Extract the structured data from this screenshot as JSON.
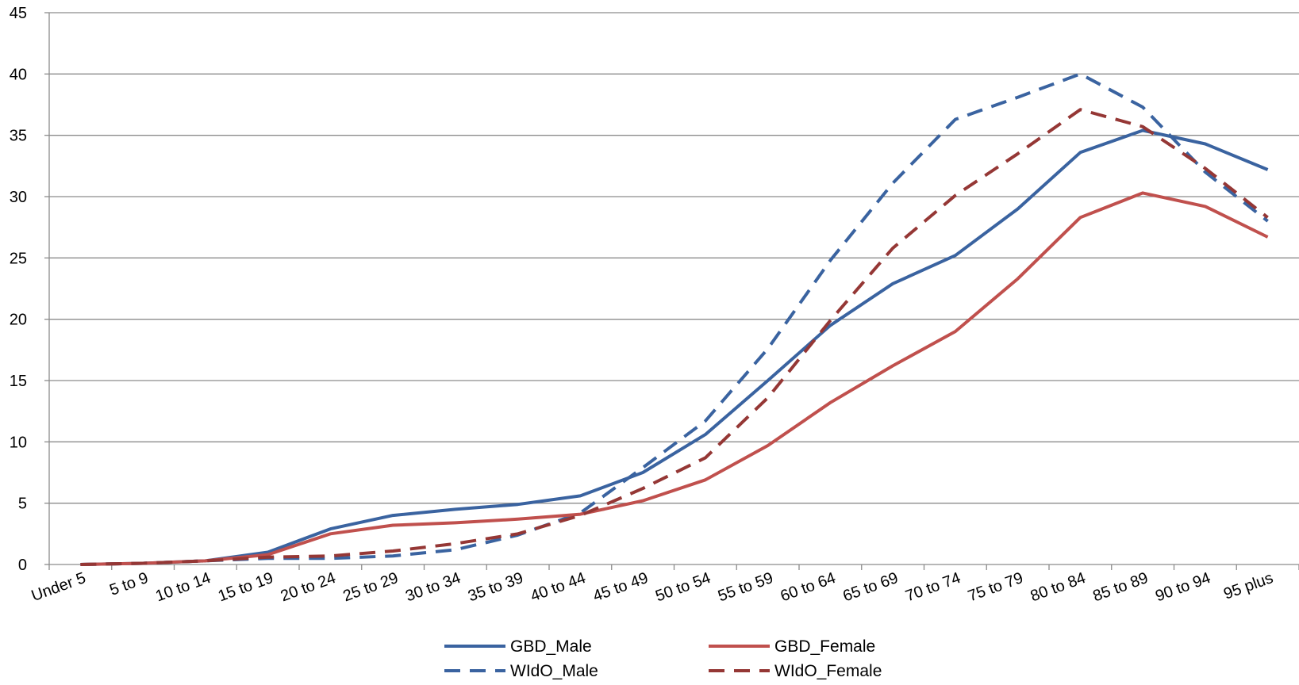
{
  "chart_data": {
    "type": "line",
    "title": "",
    "xlabel": "",
    "ylabel": "",
    "ylim": [
      0,
      45
    ],
    "yticks": [
      "0",
      "5",
      "10",
      "15",
      "20",
      "25",
      "30",
      "35",
      "40",
      "45"
    ],
    "categories": [
      "Under 5",
      "5 to 9",
      "10 to 14",
      "15 to 19",
      "20 to 24",
      "25 to 29",
      "30 to 34",
      "35 to 39",
      "40 to 44",
      "45 to 49",
      "50 to 54",
      "55 to 59",
      "60 to 64",
      "65 to 69",
      "70 to 74",
      "75 to 79",
      "80 to 84",
      "85 to 89",
      "90 to 94",
      "95 plus"
    ],
    "grid": true,
    "legend_position": "bottom",
    "series": [
      {
        "name": "GBD_Male",
        "color": "#3A63A0",
        "dash": "solid",
        "values": [
          0.0,
          0.1,
          0.3,
          1.0,
          2.9,
          4.0,
          4.5,
          4.9,
          5.6,
          7.5,
          10.6,
          15.0,
          19.5,
          22.9,
          25.2,
          29.0,
          33.6,
          35.4,
          34.3,
          32.2
        ]
      },
      {
        "name": "WIdO_Male",
        "color": "#3A63A0",
        "dash": "dashed",
        "values": [
          0.0,
          0.1,
          0.3,
          0.5,
          0.5,
          0.7,
          1.2,
          2.4,
          4.2,
          7.9,
          11.7,
          17.6,
          24.8,
          31.1,
          36.3,
          38.1,
          40.0,
          37.3,
          32.0,
          28.0
        ]
      },
      {
        "name": "GBD_Female",
        "color": "#C0504D",
        "dash": "solid",
        "values": [
          0.0,
          0.1,
          0.3,
          0.8,
          2.5,
          3.2,
          3.4,
          3.7,
          4.1,
          5.2,
          6.9,
          9.7,
          13.2,
          16.2,
          19.0,
          23.3,
          28.3,
          30.3,
          29.2,
          26.7
        ]
      },
      {
        "name": "WIdO_Female",
        "color": "#953735",
        "dash": "dashed",
        "values": [
          0.0,
          0.1,
          0.3,
          0.6,
          0.7,
          1.1,
          1.7,
          2.5,
          4.0,
          6.2,
          8.7,
          13.6,
          19.9,
          25.8,
          30.1,
          33.5,
          37.1,
          35.7,
          32.3,
          28.3
        ]
      }
    ]
  }
}
